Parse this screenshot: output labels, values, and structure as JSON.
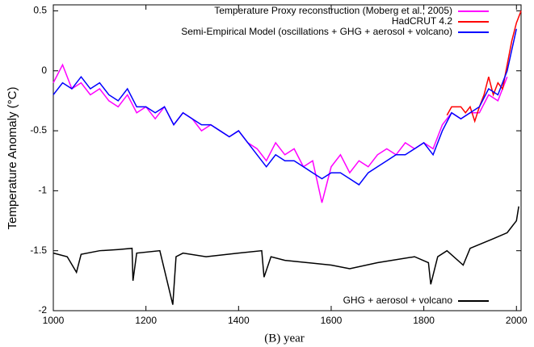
{
  "chart_data": {
    "type": "line",
    "xlabel": "(B)  year",
    "ylabel": "Temperature Anomaly (°C)",
    "xlim": [
      1000,
      2010
    ],
    "ylim": [
      -2,
      0.55
    ],
    "xticks": [
      1000,
      1200,
      1400,
      1600,
      1800,
      2000
    ],
    "yticks": [
      0.5,
      0,
      -0.5,
      -1,
      -1.5,
      -2
    ],
    "series": [
      {
        "name": "Temperature Proxy reconstruction (Moberg et al., 2005)",
        "color": "#ff00ff",
        "legend_loc": "upper right",
        "x": [
          1000,
          1020,
          1040,
          1060,
          1080,
          1100,
          1120,
          1140,
          1160,
          1180,
          1200,
          1220,
          1240,
          1260,
          1280,
          1300,
          1320,
          1340,
          1360,
          1380,
          1400,
          1420,
          1440,
          1460,
          1480,
          1500,
          1520,
          1540,
          1560,
          1580,
          1600,
          1620,
          1640,
          1660,
          1680,
          1700,
          1720,
          1740,
          1760,
          1780,
          1800,
          1820,
          1840,
          1860,
          1880,
          1900,
          1920,
          1940,
          1960,
          1980
        ],
        "values": [
          -0.1,
          0.05,
          -0.15,
          -0.1,
          -0.2,
          -0.15,
          -0.25,
          -0.3,
          -0.2,
          -0.35,
          -0.3,
          -0.4,
          -0.3,
          -0.45,
          -0.35,
          -0.4,
          -0.5,
          -0.45,
          -0.5,
          -0.55,
          -0.5,
          -0.6,
          -0.65,
          -0.75,
          -0.6,
          -0.7,
          -0.65,
          -0.8,
          -0.75,
          -1.1,
          -0.8,
          -0.7,
          -0.85,
          -0.75,
          -0.8,
          -0.7,
          -0.65,
          -0.7,
          -0.6,
          -0.65,
          -0.6,
          -0.65,
          -0.45,
          -0.35,
          -0.4,
          -0.35,
          -0.35,
          -0.2,
          -0.25,
          -0.05
        ]
      },
      {
        "name": "HadCRUT 4.2",
        "color": "#ff0000",
        "legend_loc": "upper right",
        "x": [
          1850,
          1860,
          1870,
          1880,
          1890,
          1900,
          1910,
          1920,
          1930,
          1940,
          1950,
          1960,
          1970,
          1980,
          1990,
          2000,
          2010
        ],
        "values": [
          -0.37,
          -0.3,
          -0.3,
          -0.3,
          -0.35,
          -0.3,
          -0.42,
          -0.3,
          -0.2,
          -0.05,
          -0.2,
          -0.1,
          -0.15,
          0.05,
          0.25,
          0.4,
          0.5
        ]
      },
      {
        "name": "Semi-Empirical Model (oscillations + GHG + aerosol + volcano)",
        "color": "#0000ff",
        "legend_loc": "upper right",
        "x": [
          1000,
          1020,
          1040,
          1060,
          1080,
          1100,
          1120,
          1140,
          1160,
          1180,
          1200,
          1220,
          1240,
          1260,
          1280,
          1300,
          1320,
          1340,
          1360,
          1380,
          1400,
          1420,
          1440,
          1460,
          1480,
          1500,
          1520,
          1540,
          1560,
          1580,
          1600,
          1620,
          1640,
          1660,
          1680,
          1700,
          1720,
          1740,
          1760,
          1780,
          1800,
          1820,
          1840,
          1860,
          1880,
          1900,
          1920,
          1940,
          1960,
          1980,
          2000
        ],
        "values": [
          -0.2,
          -0.1,
          -0.15,
          -0.05,
          -0.15,
          -0.1,
          -0.2,
          -0.25,
          -0.15,
          -0.3,
          -0.3,
          -0.35,
          -0.3,
          -0.45,
          -0.35,
          -0.4,
          -0.45,
          -0.45,
          -0.5,
          -0.55,
          -0.5,
          -0.6,
          -0.7,
          -0.8,
          -0.7,
          -0.75,
          -0.75,
          -0.8,
          -0.85,
          -0.9,
          -0.85,
          -0.85,
          -0.9,
          -0.95,
          -0.85,
          -0.8,
          -0.75,
          -0.7,
          -0.7,
          -0.65,
          -0.6,
          -0.7,
          -0.5,
          -0.35,
          -0.4,
          -0.35,
          -0.3,
          -0.15,
          -0.2,
          0.0,
          0.35
        ]
      },
      {
        "name": "GHG + aerosol + volcano",
        "color": "#000000",
        "legend_loc": "lower right",
        "x": [
          1000,
          1030,
          1050,
          1060,
          1100,
          1140,
          1170,
          1172,
          1180,
          1230,
          1258,
          1265,
          1280,
          1330,
          1400,
          1450,
          1455,
          1470,
          1500,
          1600,
          1640,
          1700,
          1780,
          1810,
          1815,
          1830,
          1850,
          1885,
          1900,
          1950,
          1980,
          2000,
          2005
        ],
        "values": [
          -1.52,
          -1.55,
          -1.68,
          -1.53,
          -1.5,
          -1.49,
          -1.48,
          -1.75,
          -1.52,
          -1.5,
          -1.95,
          -1.55,
          -1.52,
          -1.55,
          -1.52,
          -1.5,
          -1.72,
          -1.55,
          -1.58,
          -1.62,
          -1.65,
          -1.6,
          -1.55,
          -1.6,
          -1.78,
          -1.55,
          -1.5,
          -1.62,
          -1.48,
          -1.4,
          -1.35,
          -1.25,
          -1.13
        ]
      }
    ]
  }
}
